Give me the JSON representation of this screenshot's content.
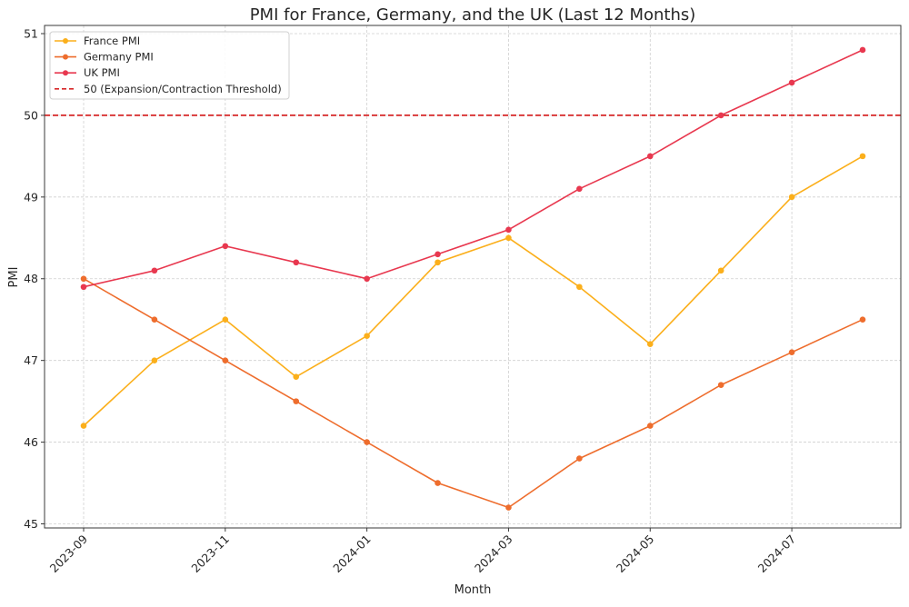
{
  "chart_data": {
    "type": "line",
    "title": "PMI for France, Germany, and the UK (Last 12 Months)",
    "xlabel": "Month",
    "ylabel": "PMI",
    "ylim": [
      44.95,
      51.1
    ],
    "x": [
      "2023-09",
      "2023-10",
      "2023-11",
      "2023-12",
      "2024-01",
      "2024-02",
      "2024-03",
      "2024-04",
      "2024-05",
      "2024-06",
      "2024-07",
      "2024-08"
    ],
    "x_ticks": [
      "2023-09",
      "2023-11",
      "2024-01",
      "2024-03",
      "2024-05",
      "2024-07"
    ],
    "y_ticks": [
      45,
      46,
      47,
      48,
      49,
      50,
      51
    ],
    "grid": true,
    "legend_position": "top-left",
    "series": [
      {
        "name": "France PMI",
        "color": "#FBAF1B",
        "values": [
          46.2,
          47.0,
          47.5,
          46.8,
          47.3,
          48.2,
          48.5,
          47.9,
          47.2,
          48.1,
          49.0,
          49.5
        ]
      },
      {
        "name": "Germany PMI",
        "color": "#EE6D2D",
        "values": [
          48.0,
          47.5,
          47.0,
          46.5,
          46.0,
          45.5,
          45.2,
          45.8,
          46.2,
          46.7,
          47.1,
          47.5
        ]
      },
      {
        "name": "UK PMI",
        "color": "#E8384F",
        "values": [
          47.9,
          48.1,
          48.4,
          48.2,
          48.0,
          48.3,
          48.6,
          49.1,
          49.5,
          50.0,
          50.4,
          50.8
        ]
      }
    ],
    "threshold": {
      "value": 50,
      "label": "50 (Expansion/Contraction Threshold)",
      "color": "#D62728"
    }
  }
}
